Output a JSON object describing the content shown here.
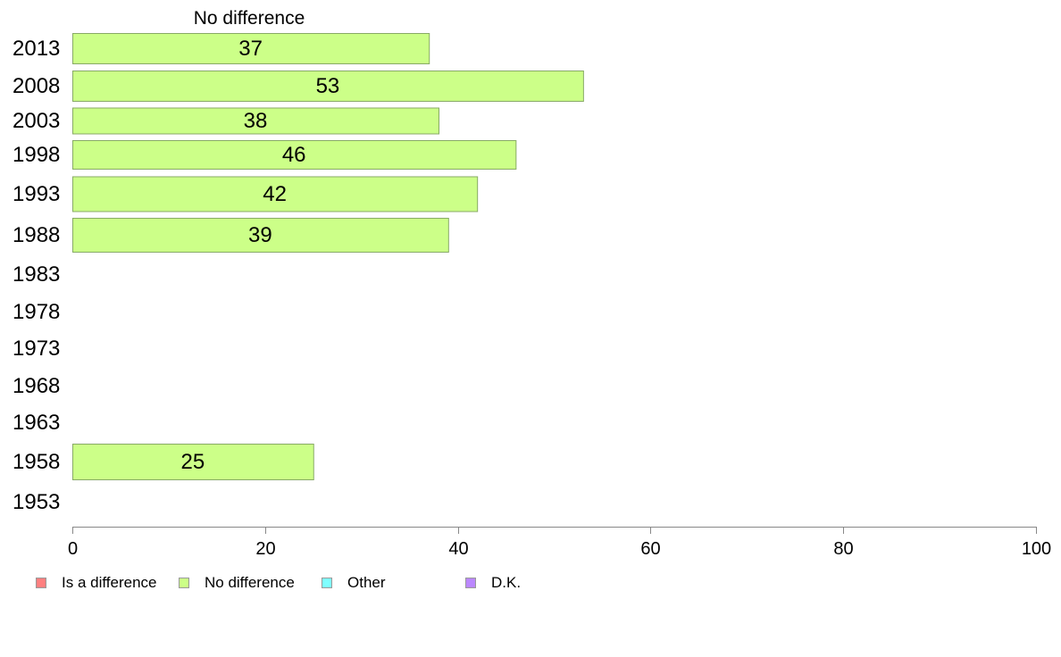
{
  "chart_data": {
    "type": "bar",
    "orientation": "horizontal",
    "title": "No difference",
    "categories": [
      "2013",
      "2008",
      "2003",
      "1998",
      "1993",
      "1988",
      "1983",
      "1978",
      "1973",
      "1968",
      "1963",
      "1958",
      "1953"
    ],
    "series": [
      {
        "name": "No difference",
        "values": [
          37,
          53,
          38,
          46,
          42,
          39,
          null,
          null,
          null,
          null,
          null,
          25,
          null
        ]
      }
    ],
    "xlim": [
      0,
      100
    ],
    "xticks": [
      "0",
      "20",
      "40",
      "60",
      "80",
      "100"
    ],
    "grid": false,
    "legend_position": "bottom",
    "legend": [
      {
        "label": "Is a difference",
        "color": "#ff8080"
      },
      {
        "label": "No difference",
        "color": "#ccff88"
      },
      {
        "label": "Other",
        "color": "#80ffff"
      },
      {
        "label": "D.K.",
        "color": "#bb88ff"
      }
    ],
    "bar_color": "#ccff88",
    "bar_edge_color": "#88aa66"
  }
}
